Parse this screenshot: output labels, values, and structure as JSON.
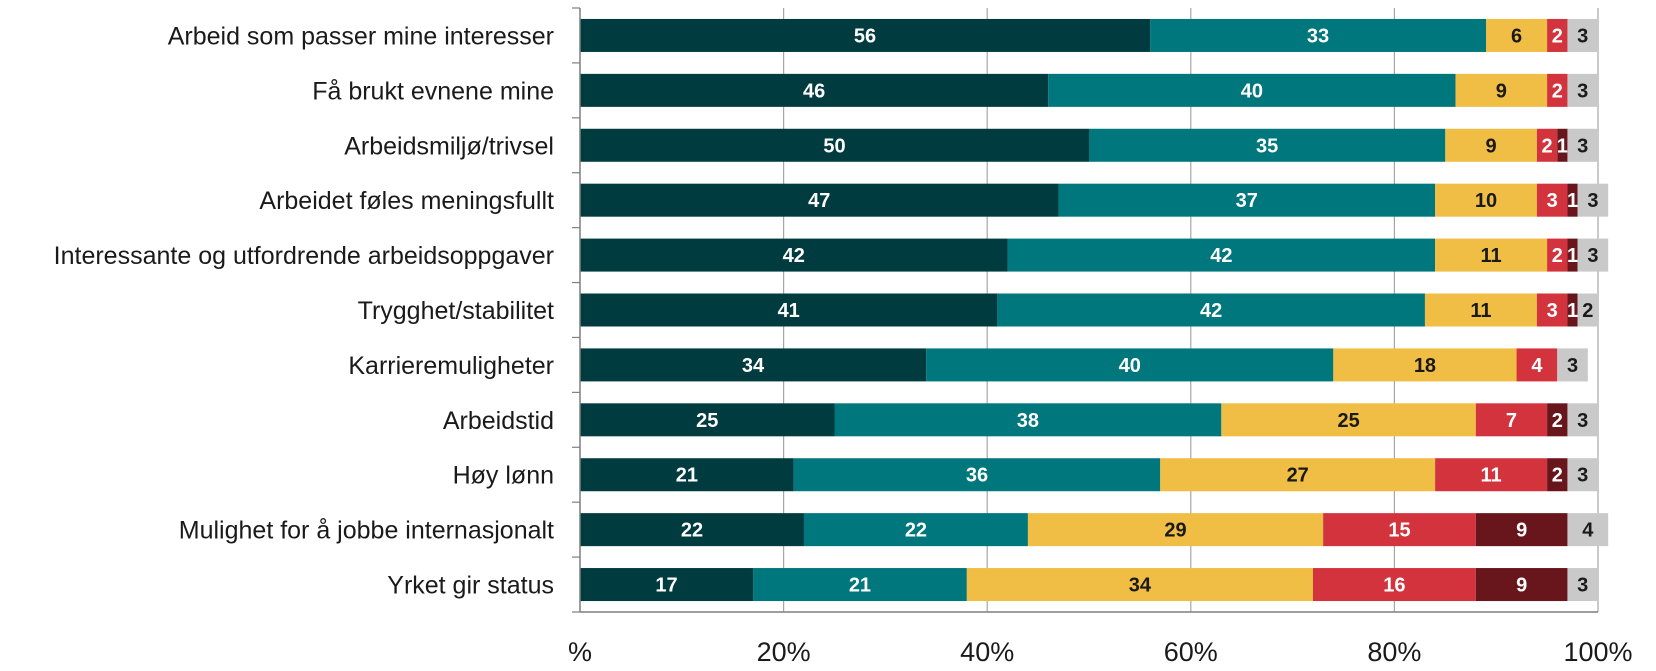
{
  "chart_data": {
    "type": "bar",
    "orientation": "horizontal",
    "stacked": true,
    "title": "",
    "xlabel": "",
    "ylabel": "",
    "xlim": [
      0,
      100
    ],
    "x_ticks": [
      "%",
      "20%",
      "40%",
      "60%",
      "80%",
      "100%"
    ],
    "grid": true,
    "legend": "none",
    "categories": [
      "Arbeid som passer mine interesser",
      "Få brukt evnene mine",
      "Arbeidsmiljø/trivsel",
      "Arbeidet føles meningsfullt",
      "Interessante og utfordrende arbeidsoppgaver",
      "Trygghet/stabilitet",
      "Karrieremuligheter",
      "Arbeidstid",
      "Høy lønn",
      "Mulighet for å jobbe internasjonalt",
      "Yrket gir status"
    ],
    "series": [
      {
        "color": "#003b3f",
        "label_color": "#ffffff",
        "values": [
          56,
          46,
          50,
          47,
          42,
          41,
          34,
          25,
          21,
          22,
          17
        ]
      },
      {
        "color": "#00767d",
        "label_color": "#ffffff",
        "values": [
          33,
          40,
          35,
          37,
          42,
          42,
          40,
          38,
          36,
          22,
          21
        ]
      },
      {
        "color": "#f0bd45",
        "label_color": "#1a1a1a",
        "values": [
          6,
          9,
          9,
          10,
          11,
          11,
          18,
          25,
          27,
          29,
          34
        ]
      },
      {
        "color": "#d3333d",
        "label_color": "#ffffff",
        "values": [
          2,
          2,
          2,
          3,
          2,
          3,
          4,
          7,
          11,
          15,
          16
        ]
      },
      {
        "color": "#68161c",
        "label_color": "#ffffff",
        "values": [
          0,
          0,
          1,
          1,
          1,
          1,
          0,
          2,
          2,
          9,
          9
        ]
      },
      {
        "color": "#c9c9c9",
        "label_color": "#1a1a1a",
        "values": [
          3,
          3,
          3,
          3,
          3,
          2,
          3,
          3,
          3,
          4,
          3
        ]
      }
    ]
  }
}
